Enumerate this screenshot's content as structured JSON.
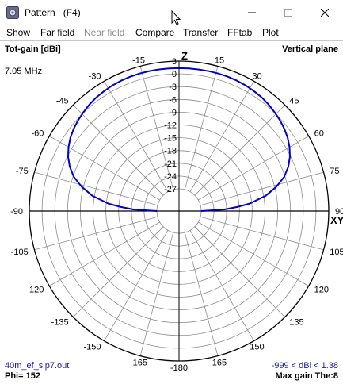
{
  "window": {
    "title": "Pattern   (F4)",
    "icon": "app-settings-icon",
    "controls": [
      "minimize-icon",
      "maximize-icon",
      "close-icon"
    ]
  },
  "menu": {
    "items": [
      {
        "label": "Show",
        "enabled": true
      },
      {
        "label": "Far field",
        "enabled": true
      },
      {
        "label": "Near field",
        "enabled": false
      },
      {
        "label": "Compare",
        "enabled": true
      },
      {
        "label": "Transfer",
        "enabled": true
      },
      {
        "label": "FFtab",
        "enabled": true
      },
      {
        "label": "Plot",
        "enabled": true
      }
    ]
  },
  "plot": {
    "gain_label": "Tot-gain [dBi]",
    "plane_label": "Vertical plane",
    "frequency": "7.05 MHz",
    "filename": "40m_ef_slp7.out",
    "phi": "Phi= 152",
    "gain_range": "-999 < dBi < 1.38",
    "max_gain": "Max gain The:8",
    "z_label": "Z",
    "xy_label": "XY",
    "curve_color": "#0000d0",
    "grid_color": "#8c8c8c"
  },
  "chart_data": {
    "type": "polar",
    "radial_unit": "dBi",
    "radial_ticks": [
      3,
      0,
      -3,
      -6,
      -9,
      -12,
      -15,
      -18,
      -21,
      -24,
      -27
    ],
    "angle_labels": [
      {
        "text": "Z",
        "angle": 0
      },
      {
        "text": "15",
        "angle": 15
      },
      {
        "text": "30",
        "angle": 30
      },
      {
        "text": "45",
        "angle": 45
      },
      {
        "text": "60",
        "angle": 60
      },
      {
        "text": "75",
        "angle": 75
      },
      {
        "text": "90",
        "angle": 90
      },
      {
        "text": "105",
        "angle": 105
      },
      {
        "text": "120",
        "angle": 120
      },
      {
        "text": "135",
        "angle": 135
      },
      {
        "text": "150",
        "angle": 150
      },
      {
        "text": "165",
        "angle": 165
      },
      {
        "text": "-180",
        "angle": 180
      },
      {
        "text": "-165",
        "angle": 195
      },
      {
        "text": "-150",
        "angle": 210
      },
      {
        "text": "-135",
        "angle": 225
      },
      {
        "text": "-120",
        "angle": 240
      },
      {
        "text": "-105",
        "angle": 255
      },
      {
        "text": "-90",
        "angle": 270
      },
      {
        "text": "-75",
        "angle": 285
      },
      {
        "text": "-60",
        "angle": 300
      },
      {
        "text": "-45",
        "angle": 315
      },
      {
        "text": "-30",
        "angle": 330
      },
      {
        "text": "-15",
        "angle": 345
      }
    ],
    "series": [
      {
        "theta_deg": [
          -90,
          -88,
          -86,
          -84,
          -80,
          -76,
          -72,
          -68,
          -64,
          -60,
          -56,
          -52,
          -48,
          -44,
          -40,
          -36,
          -32,
          -28,
          -24,
          -20,
          -16,
          -12,
          -8,
          -4,
          0,
          4,
          8,
          12,
          16,
          20,
          24,
          28,
          32,
          36,
          40,
          44,
          48,
          52,
          56,
          60,
          64,
          68,
          72,
          76,
          80,
          84,
          86,
          88,
          90
        ],
        "gain_dbi": [
          -27,
          -21.5,
          -18.5,
          -15.5,
          -11.5,
          -8.6,
          -6.2,
          -4.5,
          -3.2,
          -2.2,
          -1.4,
          -0.8,
          -0.3,
          0.1,
          0.5,
          0.8,
          1.0,
          1.2,
          1.3,
          1.35,
          1.38,
          1.38,
          1.37,
          1.36,
          1.35,
          1.35,
          1.36,
          1.37,
          1.37,
          1.35,
          1.3,
          1.2,
          1.0,
          0.8,
          0.5,
          0.1,
          -0.3,
          -0.8,
          -1.4,
          -2.2,
          -3.2,
          -4.5,
          -6.2,
          -8.6,
          -11.5,
          -15.5,
          -18.5,
          -21.5,
          -27
        ]
      }
    ]
  }
}
